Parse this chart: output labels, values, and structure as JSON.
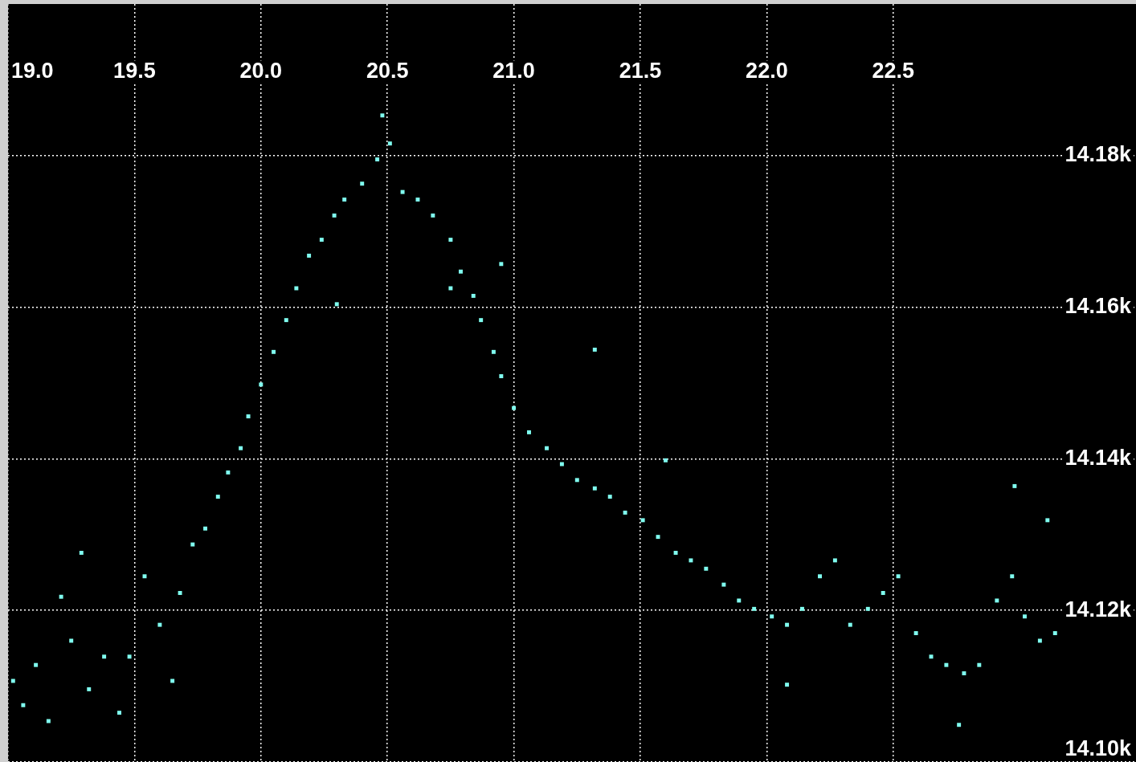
{
  "chart_data": {
    "type": "scatter",
    "marker": "square",
    "grid": true,
    "xlim": [
      19.0,
      23.46
    ],
    "xticks": [
      {
        "value": 19.0,
        "label": "19.0"
      },
      {
        "value": 19.5,
        "label": "19.5"
      },
      {
        "value": 20.0,
        "label": "20.0"
      },
      {
        "value": 20.5,
        "label": "20.5"
      },
      {
        "value": 21.0,
        "label": "21.0"
      },
      {
        "value": 21.5,
        "label": "21.5"
      },
      {
        "value": 22.0,
        "label": "22.0"
      },
      {
        "value": 22.5,
        "label": "22.5"
      }
    ],
    "ylim": [
      14100,
      14200
    ],
    "yticks": [
      {
        "value": 14100,
        "label": "14.10k"
      },
      {
        "value": 14120,
        "label": "14.12k"
      },
      {
        "value": 14140,
        "label": "14.14k"
      },
      {
        "value": 14160,
        "label": "14.16k"
      },
      {
        "value": 14180,
        "label": "14.18k"
      }
    ],
    "series": [
      {
        "color": "#80fff0",
        "x": [
          19.02,
          19.06,
          19.11,
          19.16,
          19.21,
          19.25,
          19.29,
          19.32,
          19.38,
          19.44,
          19.48,
          19.54,
          19.6,
          19.65,
          19.68,
          19.73,
          19.78,
          19.83,
          19.87,
          19.92,
          19.95,
          20.0,
          20.05,
          20.1,
          20.14,
          20.19,
          20.24,
          20.29,
          20.33,
          20.4,
          20.46,
          20.48,
          20.51,
          20.56,
          20.62,
          20.68,
          20.75,
          20.79,
          20.84,
          20.87,
          20.92,
          20.95,
          21.0,
          21.06,
          21.13,
          21.19,
          21.25,
          21.32,
          21.38,
          21.44,
          21.51,
          21.57,
          21.64,
          21.7,
          21.76,
          21.83,
          21.89,
          21.95,
          22.02,
          22.08,
          22.14,
          22.21,
          22.27,
          22.33,
          22.4,
          22.46,
          22.52,
          22.59,
          22.65,
          22.71,
          22.78,
          22.84,
          22.91,
          22.97,
          22.98,
          23.02,
          23.08,
          23.14,
          21.32,
          20.95,
          22.76,
          22.08,
          20.75,
          20.3,
          23.11,
          21.6
        ],
        "values": [
          14110.7,
          14107.5,
          14112.8,
          14105.4,
          14121.8,
          14116.0,
          14127.6,
          14109.6,
          14113.9,
          14106.5,
          14113.9,
          14124.5,
          14118.1,
          14110.7,
          14122.3,
          14128.7,
          14130.8,
          14135.0,
          14138.2,
          14141.4,
          14145.6,
          14149.8,
          14154.1,
          14158.3,
          14162.5,
          14166.8,
          14168.9,
          14172.1,
          14174.2,
          14176.3,
          14179.5,
          14185.3,
          14181.6,
          14175.2,
          14174.2,
          14172.1,
          14168.9,
          14164.7,
          14161.5,
          14158.3,
          14154.1,
          14150.9,
          14146.7,
          14143.5,
          14141.4,
          14139.3,
          14137.2,
          14136.1,
          14135.0,
          14132.9,
          14131.9,
          14129.7,
          14127.6,
          14126.6,
          14125.5,
          14123.4,
          14121.3,
          14120.2,
          14119.2,
          14118.1,
          14120.2,
          14124.5,
          14126.6,
          14118.1,
          14120.2,
          14122.3,
          14124.5,
          14117.0,
          14113.9,
          14112.8,
          14111.7,
          14112.8,
          14121.3,
          14124.5,
          14136.4,
          14119.2,
          14116.0,
          14117.0,
          14154.4,
          14165.7,
          14104.9,
          14110.2,
          14162.5,
          14160.4,
          14131.9,
          14139.8
        ]
      }
    ]
  }
}
